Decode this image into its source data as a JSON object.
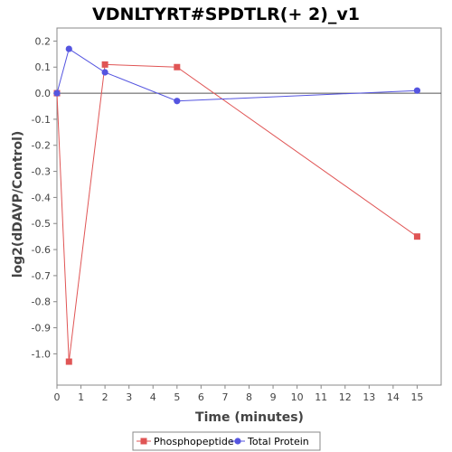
{
  "chart_data": {
    "type": "line",
    "title": "VDNLTYRT#SPDTLR(+ 2)_v1",
    "xlabel": "Time (minutes)",
    "ylabel": "log2(dDAVP/Control)",
    "xlim": [
      0,
      16
    ],
    "ylim": [
      -1.12,
      0.25
    ],
    "x_ticks": [
      0,
      1,
      2,
      3,
      4,
      5,
      6,
      7,
      8,
      9,
      10,
      11,
      12,
      13,
      14,
      15
    ],
    "y_ticks": [
      0.2,
      0.1,
      0.0,
      -0.1,
      -0.2,
      -0.3,
      -0.4,
      -0.5,
      -0.6,
      -0.7,
      -0.8,
      -0.9,
      -1.0
    ],
    "y_tick_labels": [
      "0.2",
      "0.1",
      "0.0",
      "-0.1",
      "-0.2",
      "-0.3",
      "-0.4",
      "-0.5",
      "-0.6",
      "-0.7",
      "-0.8",
      "-0.9",
      "-1.0"
    ],
    "grid": false,
    "zero_line": true,
    "legend_position": "bottom",
    "series": [
      {
        "name": "Phosphopeptide",
        "color": "#e05555",
        "marker": "square",
        "x": [
          0,
          0.5,
          2,
          5,
          15
        ],
        "y": [
          0.0,
          -1.03,
          0.11,
          0.1,
          -0.55
        ]
      },
      {
        "name": "Total Protein",
        "color": "#5555e0",
        "marker": "circle",
        "x": [
          0,
          0.5,
          2,
          5,
          15
        ],
        "y": [
          0.0,
          0.17,
          0.08,
          -0.03,
          0.01
        ]
      }
    ]
  }
}
